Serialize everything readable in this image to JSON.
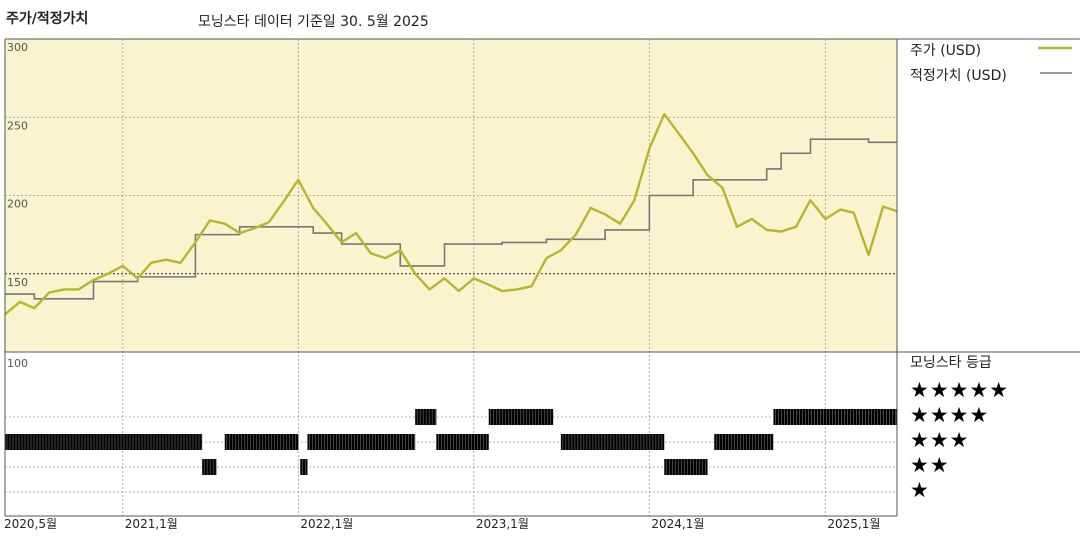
{
  "header": {
    "title": "주가/적정가치",
    "subtitle": "모닝스타 데이터 기준일 30. 5월 2025"
  },
  "legend": {
    "price": "주가 (USD)",
    "fair_value": "적정가치 (USD)"
  },
  "rating_panel": {
    "title": "모닝스타 등급",
    "levels": [
      "★★★★★",
      "★★★★",
      "★★★",
      "★★",
      "★"
    ],
    "ytick_top": "100"
  },
  "colors": {
    "price_line": "#b5b82a",
    "fair_value_line": "#777777",
    "panel_bg": "#f8f4cf",
    "rating_bar": "#000000"
  },
  "chart_data": {
    "type": "line",
    "x_axis": {
      "type": "date",
      "range": [
        "2020-05-01",
        "2025-05-30"
      ],
      "ticks": [
        "2020,5월",
        "2021,1월",
        "2022,1월",
        "2023,1월",
        "2024,1월",
        "2025,1월"
      ],
      "tick_dates": [
        "2020-05-01",
        "2021-01-01",
        "2022-01-01",
        "2023-01-01",
        "2024-01-01",
        "2025-01-01"
      ]
    },
    "y_axis": {
      "range": [
        100,
        300
      ],
      "ticks": [
        "300",
        "250",
        "200",
        "150"
      ],
      "grid": true
    },
    "series": [
      {
        "name": "주가 (USD)",
        "points": [
          [
            "2020-05-01",
            124
          ],
          [
            "2020-06-01",
            132
          ],
          [
            "2020-07-01",
            128
          ],
          [
            "2020-08-01",
            138
          ],
          [
            "2020-09-01",
            140
          ],
          [
            "2020-10-01",
            140
          ],
          [
            "2020-11-01",
            146
          ],
          [
            "2020-12-01",
            150
          ],
          [
            "2021-01-01",
            155
          ],
          [
            "2021-02-01",
            147
          ],
          [
            "2021-03-01",
            157
          ],
          [
            "2021-04-01",
            159
          ],
          [
            "2021-05-01",
            157
          ],
          [
            "2021-06-01",
            170
          ],
          [
            "2021-07-01",
            184
          ],
          [
            "2021-08-01",
            182
          ],
          [
            "2021-09-01",
            176
          ],
          [
            "2021-10-01",
            179
          ],
          [
            "2021-11-01",
            183
          ],
          [
            "2021-12-01",
            196
          ],
          [
            "2022-01-01",
            210
          ],
          [
            "2022-02-01",
            192
          ],
          [
            "2022-03-01",
            182
          ],
          [
            "2022-04-01",
            170
          ],
          [
            "2022-05-01",
            176
          ],
          [
            "2022-06-01",
            163
          ],
          [
            "2022-07-01",
            160
          ],
          [
            "2022-08-01",
            165
          ],
          [
            "2022-09-01",
            150
          ],
          [
            "2022-10-01",
            140
          ],
          [
            "2022-11-01",
            147
          ],
          [
            "2022-12-01",
            139
          ],
          [
            "2023-01-01",
            147
          ],
          [
            "2023-02-01",
            143
          ],
          [
            "2023-03-01",
            139
          ],
          [
            "2023-04-01",
            140
          ],
          [
            "2023-05-01",
            142
          ],
          [
            "2023-06-01",
            160
          ],
          [
            "2023-07-01",
            165
          ],
          [
            "2023-08-01",
            175
          ],
          [
            "2023-09-01",
            192
          ],
          [
            "2023-10-01",
            188
          ],
          [
            "2023-11-01",
            182
          ],
          [
            "2023-12-01",
            197
          ],
          [
            "2024-01-01",
            230
          ],
          [
            "2024-02-01",
            252
          ],
          [
            "2024-03-01",
            240
          ],
          [
            "2024-04-01",
            227
          ],
          [
            "2024-05-01",
            213
          ],
          [
            "2024-06-01",
            205
          ],
          [
            "2024-07-01",
            180
          ],
          [
            "2024-08-01",
            185
          ],
          [
            "2024-09-01",
            178
          ],
          [
            "2024-10-01",
            177
          ],
          [
            "2024-11-01",
            180
          ],
          [
            "2024-12-01",
            197
          ],
          [
            "2025-01-01",
            185
          ],
          [
            "2025-02-01",
            191
          ],
          [
            "2025-03-01",
            189
          ],
          [
            "2025-04-01",
            162
          ],
          [
            "2025-05-01",
            193
          ],
          [
            "2025-05-30",
            190
          ]
        ]
      },
      {
        "name": "적정가치 (USD)",
        "step": true,
        "points": [
          [
            "2020-05-01",
            137
          ],
          [
            "2020-07-01",
            134
          ],
          [
            "2020-11-01",
            145
          ],
          [
            "2021-02-01",
            148
          ],
          [
            "2021-06-01",
            175
          ],
          [
            "2021-09-01",
            180
          ],
          [
            "2022-02-01",
            176
          ],
          [
            "2022-04-01",
            169
          ],
          [
            "2022-08-01",
            155
          ],
          [
            "2022-11-01",
            169
          ],
          [
            "2023-03-01",
            170
          ],
          [
            "2023-06-01",
            172
          ],
          [
            "2023-10-01",
            178
          ],
          [
            "2024-01-01",
            200
          ],
          [
            "2024-04-01",
            210
          ],
          [
            "2024-09-01",
            217
          ],
          [
            "2024-10-01",
            227
          ],
          [
            "2024-12-01",
            236
          ],
          [
            "2025-04-01",
            234
          ]
        ]
      }
    ],
    "ratings": [
      {
        "stars": 3,
        "start": "2020-05-01",
        "end": "2021-06-15"
      },
      {
        "stars": 2,
        "start": "2021-06-15",
        "end": "2021-07-15"
      },
      {
        "stars": 3,
        "start": "2021-08-01",
        "end": "2022-01-01"
      },
      {
        "stars": 2,
        "start": "2022-01-05",
        "end": "2022-01-20"
      },
      {
        "stars": 3,
        "start": "2022-01-20",
        "end": "2022-09-01"
      },
      {
        "stars": 4,
        "start": "2022-09-01",
        "end": "2022-10-15"
      },
      {
        "stars": 3,
        "start": "2022-10-15",
        "end": "2023-02-01"
      },
      {
        "stars": 4,
        "start": "2023-02-01",
        "end": "2023-06-15"
      },
      {
        "stars": 3,
        "start": "2023-07-01",
        "end": "2024-02-01"
      },
      {
        "stars": 2,
        "start": "2024-02-01",
        "end": "2024-05-01"
      },
      {
        "stars": 3,
        "start": "2024-05-15",
        "end": "2024-09-15"
      },
      {
        "stars": 4,
        "start": "2024-09-15",
        "end": "2025-05-30"
      }
    ]
  }
}
